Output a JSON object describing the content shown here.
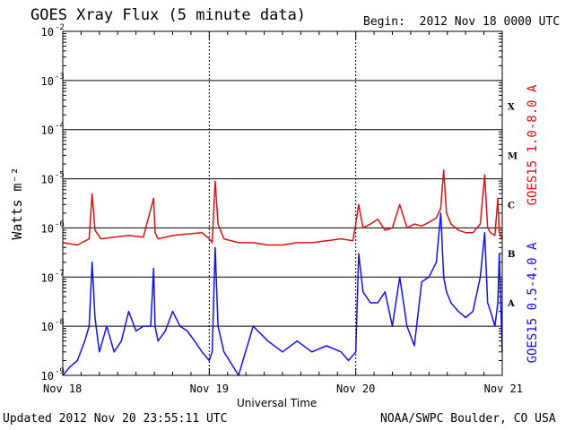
{
  "header": {
    "title": "GOES Xray Flux (5 minute data)",
    "begin": "Begin:  2012 Nov 18 0000 UTC"
  },
  "footer": {
    "updated": "Updated 2012 Nov 20 23:55:11 UTC",
    "credit": "NOAA/SWPC Boulder, CO USA"
  },
  "colors": {
    "long": "#dd1111",
    "short": "#1111ee"
  },
  "chart_data": {
    "type": "line",
    "title": "GOES Xray Flux (5 minute data)",
    "xlabel": "Universal Time",
    "ylabel": "Watts m⁻²",
    "yscale": "log",
    "ylim": [
      1e-09,
      0.01
    ],
    "xlim_days": [
      "Nov 18",
      "Nov 21"
    ],
    "grid": true,
    "y_tick_labels": [
      {
        "value": 0.01,
        "base": "10",
        "exp": "-2"
      },
      {
        "value": 0.001,
        "base": "10",
        "exp": "-3"
      },
      {
        "value": 0.0001,
        "base": "10",
        "exp": "-4"
      },
      {
        "value": 1e-05,
        "base": "10",
        "exp": "-5"
      },
      {
        "value": 1e-06,
        "base": "10",
        "exp": "-6"
      },
      {
        "value": 1e-07,
        "base": "10",
        "exp": "-7"
      },
      {
        "value": 1e-08,
        "base": "10",
        "exp": "-8"
      },
      {
        "value": 1e-09,
        "base": "10",
        "exp": "-9"
      }
    ],
    "x_tick_labels": [
      "Nov 18",
      "Nov 19",
      "Nov 20",
      "Nov 21"
    ],
    "flare_classes": [
      {
        "label": "X",
        "value": 0.0003
      },
      {
        "label": "M",
        "value": 3e-05
      },
      {
        "label": "C",
        "value": 3e-06
      },
      {
        "label": "B",
        "value": 3e-07
      },
      {
        "label": "A",
        "value": 3e-08
      }
    ],
    "series": [
      {
        "name": "GOES15 1.0-8.0 A",
        "color": "#dd1111",
        "x_days": [
          0.0,
          0.1,
          0.18,
          0.2,
          0.22,
          0.26,
          0.35,
          0.45,
          0.55,
          0.62,
          0.63,
          0.65,
          0.75,
          0.85,
          0.95,
          1.0,
          1.02,
          1.04,
          1.06,
          1.1,
          1.2,
          1.3,
          1.4,
          1.5,
          1.6,
          1.7,
          1.8,
          1.9,
          1.98,
          2.0,
          2.02,
          2.05,
          2.1,
          2.15,
          2.2,
          2.25,
          2.3,
          2.35,
          2.4,
          2.45,
          2.5,
          2.55,
          2.58,
          2.6,
          2.62,
          2.65,
          2.7,
          2.75,
          2.8,
          2.85,
          2.88,
          2.9,
          2.92,
          2.95,
          2.97,
          2.98,
          3.0
        ],
        "values": [
          5e-07,
          4.5e-07,
          6e-07,
          5e-06,
          9e-07,
          6e-07,
          6.5e-07,
          7e-07,
          6.5e-07,
          4e-06,
          8e-07,
          6e-07,
          7e-07,
          7.5e-07,
          8e-07,
          6e-07,
          5e-07,
          9e-06,
          1.2e-06,
          6e-07,
          5e-07,
          5e-07,
          4.5e-07,
          4.5e-07,
          5e-07,
          5e-07,
          5.5e-07,
          6e-07,
          5.5e-07,
          1.2e-06,
          3e-06,
          1e-06,
          1.2e-06,
          1.5e-06,
          9e-07,
          1e-06,
          3e-06,
          1e-06,
          1.2e-06,
          1.1e-06,
          1.3e-06,
          1.6e-06,
          2.5e-06,
          1.5e-05,
          2e-06,
          1.2e-06,
          9e-07,
          8e-07,
          8e-07,
          1.2e-06,
          1.2e-05,
          1e-06,
          8e-07,
          7e-07,
          4e-06,
          8e-07,
          6e-07
        ]
      },
      {
        "name": "GOES15 0.5-4.0 A",
        "color": "#1111ee",
        "x_days": [
          0.0,
          0.05,
          0.1,
          0.15,
          0.18,
          0.2,
          0.22,
          0.25,
          0.3,
          0.35,
          0.4,
          0.45,
          0.5,
          0.55,
          0.6,
          0.62,
          0.63,
          0.65,
          0.7,
          0.75,
          0.8,
          0.85,
          0.9,
          0.95,
          1.0,
          1.02,
          1.04,
          1.06,
          1.1,
          1.2,
          1.3,
          1.4,
          1.5,
          1.6,
          1.7,
          1.8,
          1.9,
          1.95,
          2.0,
          2.02,
          2.05,
          2.1,
          2.15,
          2.2,
          2.25,
          2.3,
          2.35,
          2.4,
          2.45,
          2.5,
          2.55,
          2.58,
          2.6,
          2.62,
          2.65,
          2.7,
          2.75,
          2.8,
          2.85,
          2.88,
          2.9,
          2.92,
          2.95,
          2.97,
          2.98,
          3.0
        ],
        "values": [
          1e-09,
          1.5e-09,
          2e-09,
          5e-09,
          1e-08,
          2e-07,
          1.5e-08,
          3e-09,
          1e-08,
          3e-09,
          5e-09,
          2e-08,
          8e-09,
          1e-08,
          1e-08,
          1.5e-07,
          1e-08,
          5e-09,
          8e-09,
          2e-08,
          1e-08,
          8e-09,
          5e-09,
          3e-09,
          2e-09,
          3e-09,
          4e-07,
          1e-08,
          3e-09,
          1e-09,
          1e-08,
          5e-09,
          3e-09,
          5e-09,
          3e-09,
          4e-09,
          3e-09,
          2e-09,
          3e-09,
          3e-07,
          5e-08,
          3e-08,
          3e-08,
          5e-08,
          1e-08,
          1e-07,
          1e-08,
          4e-09,
          8e-08,
          1e-07,
          2e-07,
          2e-06,
          1e-07,
          5e-08,
          3e-08,
          2e-08,
          1.5e-08,
          2e-08,
          1e-07,
          8e-07,
          3e-08,
          2e-08,
          1e-08,
          3e-08,
          3e-07,
          3e-09
        ]
      }
    ]
  }
}
